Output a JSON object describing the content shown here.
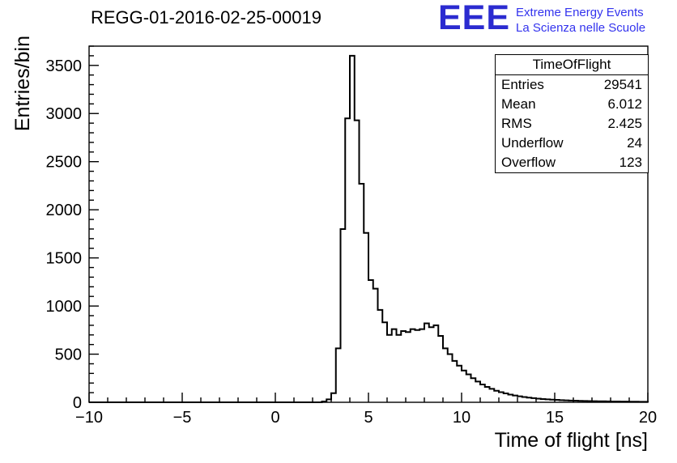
{
  "header": {
    "title": "REGG-01-2016-02-25-00019",
    "logo": {
      "text": "EEE",
      "line1": "Extreme Energy Events",
      "line2": "La Scienza nelle Scuole"
    }
  },
  "stats": {
    "title": "TimeOfFlight",
    "rows": [
      {
        "label": "Entries",
        "value": "29541"
      },
      {
        "label": "Mean",
        "value": "6.012"
      },
      {
        "label": "RMS",
        "value": "2.425"
      },
      {
        "label": "Underflow",
        "value": "24"
      },
      {
        "label": "Overflow",
        "value": "123"
      }
    ]
  },
  "colors": {
    "brand_blue": "#2b2bd0",
    "brand_blue_text": "#3333ee",
    "line_black": "#000000",
    "background": "#ffffff"
  },
  "chart_data": {
    "type": "bar",
    "subtype": "step-histogram",
    "title": "REGG-01-2016-02-25-00019",
    "xlabel": "Time of flight [ns]",
    "ylabel": "Entries/bin",
    "xlim": [
      -10,
      20
    ],
    "ylim": [
      0,
      3700
    ],
    "x_ticks": [
      -10,
      -5,
      0,
      5,
      10,
      15,
      20
    ],
    "y_ticks": [
      0,
      500,
      1000,
      1500,
      2000,
      2500,
      3000,
      3500
    ],
    "x_minor_step": 1,
    "y_minor_step": 100,
    "grid": false,
    "legend_position": "none",
    "bin_start": 2.5,
    "bin_width": 0.25,
    "counts": [
      8,
      30,
      95,
      560,
      1800,
      2950,
      3600,
      2930,
      2270,
      1760,
      1270,
      1180,
      960,
      830,
      700,
      760,
      700,
      740,
      730,
      760,
      750,
      760,
      820,
      780,
      800,
      690,
      560,
      500,
      430,
      380,
      330,
      290,
      250,
      215,
      185,
      160,
      140,
      120,
      105,
      92,
      80,
      70,
      62,
      55,
      48,
      43,
      38,
      34,
      30,
      27,
      25,
      22,
      20,
      18,
      17,
      15,
      14,
      13,
      12,
      11,
      10,
      9,
      8,
      8,
      7,
      7,
      6,
      6,
      5,
      5
    ]
  }
}
